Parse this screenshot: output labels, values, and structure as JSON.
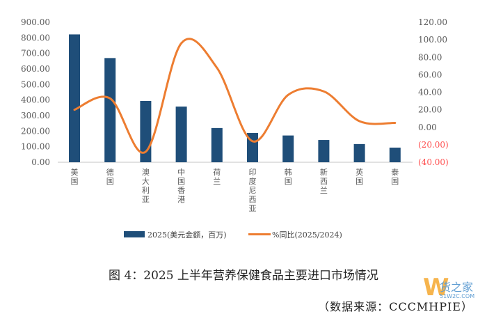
{
  "chart_data": {
    "type": "bar+line",
    "categories": [
      "美国",
      "德国",
      "澳大利亚",
      "中国香港",
      "荷兰",
      "印度尼西亚",
      "韩国",
      "新西兰",
      "英国",
      "泰国"
    ],
    "series": [
      {
        "name": "2025(美元金额，百万)",
        "type": "bar",
        "axis": "left",
        "color": "#1f4e79",
        "values": [
          822,
          670,
          394,
          358,
          220,
          188,
          172,
          143,
          117,
          94
        ]
      },
      {
        "name": "%同比(2025/2024)",
        "type": "line",
        "axis": "right",
        "color": "#ed7d31",
        "values": [
          20,
          33,
          -28,
          96,
          68,
          -16,
          37,
          41,
          7,
          5
        ]
      }
    ],
    "left_axis": {
      "ylim": [
        0,
        900
      ],
      "ticks": [
        "0.00",
        "100.00",
        "200.00",
        "300.00",
        "400.00",
        "500.00",
        "600.00",
        "700.00",
        "800.00",
        "900.00"
      ]
    },
    "right_axis": {
      "ylim": [
        -40,
        120
      ],
      "ticks": [
        "(40.00)",
        "(20.00)",
        "0.00",
        "20.00",
        "40.00",
        "60.00",
        "80.00",
        "100.00",
        "120.00"
      ],
      "negative_color": "#ff5050"
    },
    "legend_position": "bottom",
    "grid": false
  },
  "caption": {
    "title": "图 4：2025 上半年营养保健食品主要进口市场情况",
    "source": "（数据来源：CCCMHPIE）"
  },
  "watermark": {
    "glyph": "W",
    "name": "货之家",
    "url": "51W2C.COM"
  }
}
